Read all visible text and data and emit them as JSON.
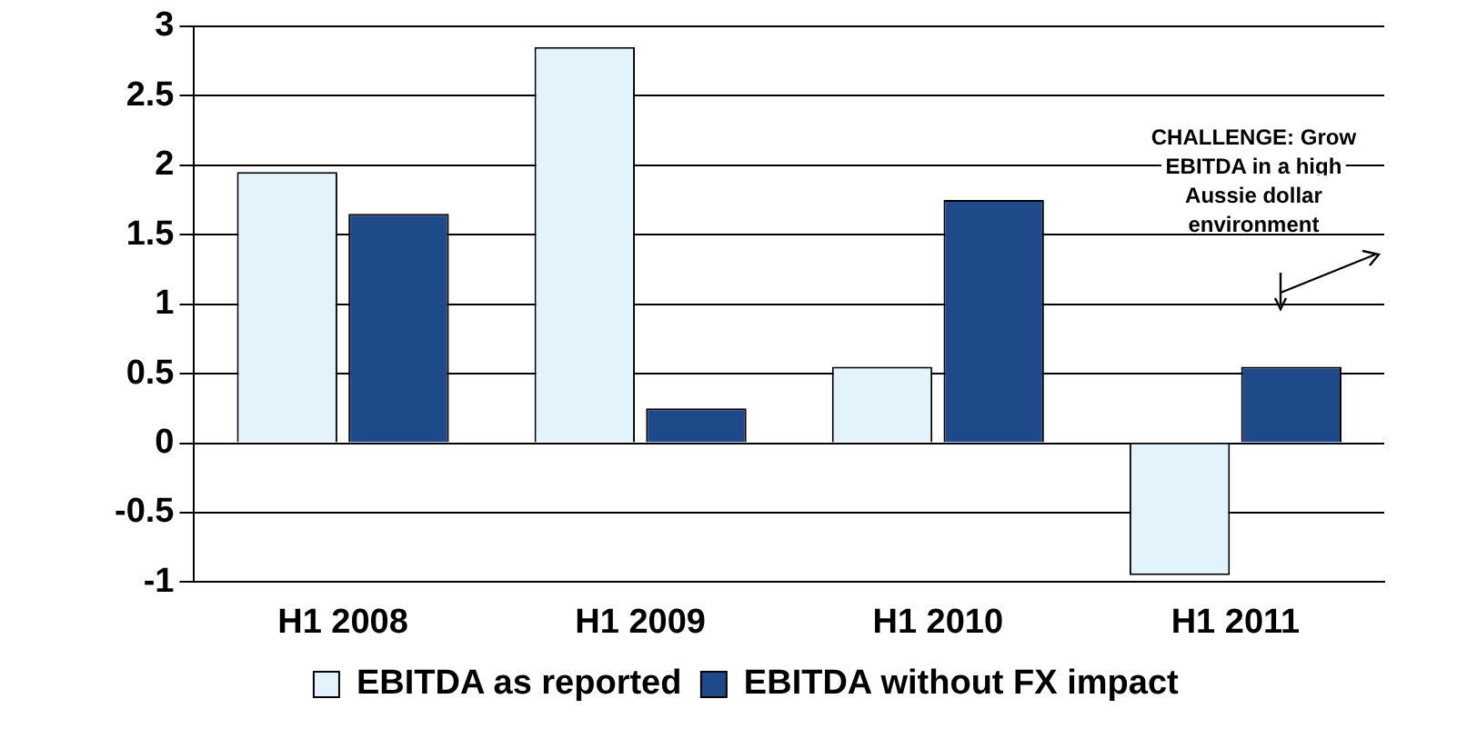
{
  "chart_data": {
    "type": "bar",
    "categories": [
      "H1 2008",
      "H1 2009",
      "H1 2010",
      "H1 2011"
    ],
    "series": [
      {
        "name": "EBITDA as reported",
        "color": "#e3f3fc",
        "values": [
          1.95,
          2.85,
          0.55,
          -0.95
        ]
      },
      {
        "name": "EBITDA without FX impact",
        "color": "#1f4a8a",
        "values": [
          1.65,
          0.25,
          1.75,
          0.55
        ]
      }
    ],
    "ylim": [
      -1,
      3
    ],
    "yticks": [
      -1,
      -0.5,
      0,
      0.5,
      1,
      1.5,
      2,
      2.5,
      3
    ],
    "grid": "y",
    "legend": "bottom",
    "annotations": [
      "CHALLENGE: Grow EBITDA in a high Aussie dollar environment"
    ]
  }
}
